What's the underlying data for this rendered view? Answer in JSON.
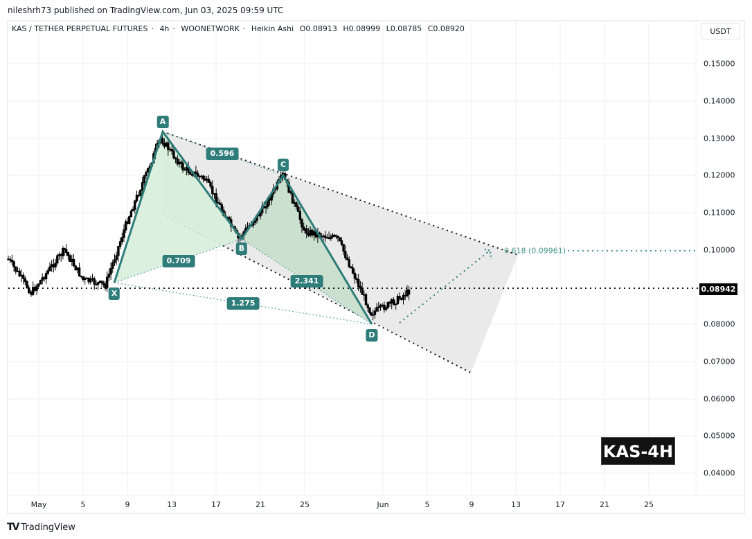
{
  "header": {
    "publisher_line": "nileshrh73 published on TradingView.com, Jun 03, 2025 09:59 UTC"
  },
  "legend": {
    "symbol": "KAS / TETHER PERPETUAL FUTURES",
    "interval": "4h",
    "exchange": "WOONETWORK",
    "chart_style": "Heikin Ashi",
    "open": "O0.08913",
    "high": "H0.08999",
    "low": "L0.08785",
    "close": "C0.08920",
    "separator": "·"
  },
  "price_axis": {
    "unit": "USDT",
    "ticks": [
      "0.15000",
      "0.14000",
      "0.13000",
      "0.12000",
      "0.11000",
      "0.10000",
      "0.08000",
      "0.07000",
      "0.06000",
      "0.05000",
      "0.04000"
    ],
    "current_price": "0.08942"
  },
  "time_axis": {
    "ticks": [
      "May",
      "5",
      "9",
      "13",
      "17",
      "21",
      "25",
      "Jun",
      "5",
      "9",
      "13",
      "17",
      "21",
      "25"
    ]
  },
  "pattern": {
    "points": {
      "X": "X",
      "A": "A",
      "B": "B",
      "C": "C",
      "D": "D"
    },
    "ratios": {
      "xb": "0.709",
      "ac": "0.596",
      "bd": "2.341",
      "xd": "1.275"
    },
    "target_label": "0.618 (0.09961)"
  },
  "watermark": "KAS-4H",
  "footer": {
    "brand": "TradingView",
    "logo_mark": "TV"
  },
  "colors": {
    "pattern_line": "#2e7d7a",
    "pattern_fill": "#c8e6c9",
    "channel_fill": "#e8e8e8",
    "target_dots": "#2e7d7a",
    "candles": "#000000",
    "grid": "#efefef"
  },
  "chart_data": {
    "type": "candlestick",
    "title": "KAS / TETHER PERPETUAL FUTURES · 4h · WOONETWORK · Heikin Ashi",
    "xlabel": "",
    "ylabel": "USDT",
    "ylim": [
      0.035,
      0.155
    ],
    "grid": true,
    "x_ticks": [
      "May",
      "5",
      "9",
      "13",
      "17",
      "21",
      "25",
      "Jun",
      "5",
      "9",
      "13",
      "17",
      "21",
      "25"
    ],
    "y_ticks": [
      0.04,
      0.05,
      0.06,
      0.07,
      0.08,
      0.1,
      0.11,
      0.12,
      0.13,
      0.14,
      0.15
    ],
    "ohlc_last": {
      "open": 0.08913,
      "high": 0.08999,
      "low": 0.08785,
      "close": 0.0892
    },
    "last_price": 0.08942,
    "approx_close_path": [
      {
        "date": "Apr 28",
        "price": 0.0975
      },
      {
        "date": "May 1",
        "price": 0.0885
      },
      {
        "date": "May 4",
        "price": 0.1
      },
      {
        "date": "May 6",
        "price": 0.092
      },
      {
        "date": "May 8",
        "price": 0.0905
      },
      {
        "date": "May 10",
        "price": 0.108
      },
      {
        "date": "May 12",
        "price": 0.13
      },
      {
        "date": "May 14",
        "price": 0.122
      },
      {
        "date": "May 16",
        "price": 0.119
      },
      {
        "date": "May 19",
        "price": 0.103
      },
      {
        "date": "May 21",
        "price": 0.11
      },
      {
        "date": "May 23",
        "price": 0.12
      },
      {
        "date": "May 25",
        "price": 0.105
      },
      {
        "date": "May 28",
        "price": 0.103
      },
      {
        "date": "May 31",
        "price": 0.083
      },
      {
        "date": "Jun 2",
        "price": 0.086
      },
      {
        "date": "Jun 3",
        "price": 0.0892
      }
    ],
    "harmonic_pattern": {
      "X": {
        "date": "May 8",
        "price": 0.0905
      },
      "A": {
        "date": "May 12",
        "price": 0.1315
      },
      "B": {
        "date": "May 19",
        "price": 0.1025
      },
      "C": {
        "date": "May 23",
        "price": 0.12
      },
      "D": {
        "date": "May 31",
        "price": 0.08
      },
      "ratios": {
        "XB": 0.709,
        "AC": 0.596,
        "BD": 2.341,
        "XD": 1.275
      }
    },
    "annotations": [
      {
        "text": "0.618 (0.09961)",
        "price": 0.09961,
        "type": "target"
      },
      {
        "text": "KAS-4H",
        "type": "watermark"
      }
    ],
    "channel": {
      "upper": [
        {
          "date": "May 12",
          "price": 0.1315
        },
        {
          "date": "Jun 13",
          "price": 0.0985
        }
      ],
      "lower": [
        {
          "date": "May 12",
          "price": 0.109
        },
        {
          "date": "Jun 9",
          "price": 0.067
        }
      ]
    }
  }
}
